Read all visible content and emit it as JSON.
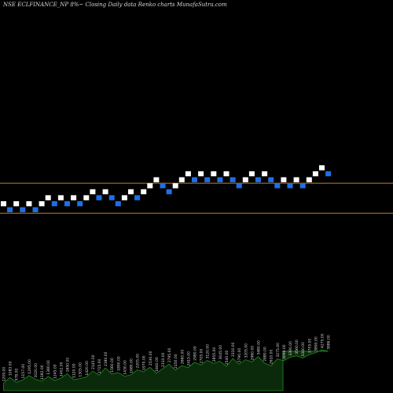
{
  "chart_data": {
    "type": "renko",
    "title": "NSE ECLFINANCE_NP 8%~   Closing Daily data  Renko  charts MunafaSutra.com",
    "colors": {
      "background": "#000000",
      "up_brick": "#ffffff",
      "down_brick": "#1e6fe8",
      "reference_line": "#c77d2e",
      "volume_fill": "#0b2a0b",
      "volume_line": "#1e8c1e",
      "volume_label": "#dcdcdc"
    },
    "price_range": [
      12,
      76
    ],
    "reference_lines": [
      47,
      42
    ],
    "bricks": [
      {
        "dir": "up",
        "level": 43
      },
      {
        "dir": "down",
        "level": 42
      },
      {
        "dir": "up",
        "level": 43
      },
      {
        "dir": "down",
        "level": 42
      },
      {
        "dir": "up",
        "level": 43
      },
      {
        "dir": "down",
        "level": 42
      },
      {
        "dir": "up",
        "level": 43
      },
      {
        "dir": "up",
        "level": 44
      },
      {
        "dir": "down",
        "level": 43
      },
      {
        "dir": "up",
        "level": 44
      },
      {
        "dir": "down",
        "level": 43
      },
      {
        "dir": "up",
        "level": 44
      },
      {
        "dir": "down",
        "level": 43
      },
      {
        "dir": "up",
        "level": 44
      },
      {
        "dir": "up",
        "level": 45
      },
      {
        "dir": "down",
        "level": 44
      },
      {
        "dir": "up",
        "level": 45
      },
      {
        "dir": "down",
        "level": 44
      },
      {
        "dir": "down",
        "level": 43
      },
      {
        "dir": "up",
        "level": 44
      },
      {
        "dir": "up",
        "level": 45
      },
      {
        "dir": "down",
        "level": 44
      },
      {
        "dir": "up",
        "level": 45
      },
      {
        "dir": "up",
        "level": 46
      },
      {
        "dir": "up",
        "level": 47
      },
      {
        "dir": "down",
        "level": 46
      },
      {
        "dir": "down",
        "level": 45
      },
      {
        "dir": "up",
        "level": 46
      },
      {
        "dir": "up",
        "level": 47
      },
      {
        "dir": "up",
        "level": 48
      },
      {
        "dir": "down",
        "level": 47
      },
      {
        "dir": "up",
        "level": 48
      },
      {
        "dir": "down",
        "level": 47
      },
      {
        "dir": "up",
        "level": 48
      },
      {
        "dir": "down",
        "level": 47
      },
      {
        "dir": "up",
        "level": 48
      },
      {
        "dir": "down",
        "level": 47
      },
      {
        "dir": "down",
        "level": 46
      },
      {
        "dir": "up",
        "level": 47
      },
      {
        "dir": "up",
        "level": 48
      },
      {
        "dir": "down",
        "level": 47
      },
      {
        "dir": "up",
        "level": 48
      },
      {
        "dir": "down",
        "level": 47
      },
      {
        "dir": "down",
        "level": 46
      },
      {
        "dir": "up",
        "level": 47
      },
      {
        "dir": "down",
        "level": 46
      },
      {
        "dir": "up",
        "level": 47
      },
      {
        "dir": "down",
        "level": 46
      },
      {
        "dir": "up",
        "level": 47
      },
      {
        "dir": "up",
        "level": 48
      },
      {
        "dir": "up",
        "level": 49
      },
      {
        "dir": "down",
        "level": 48
      }
    ],
    "volume": {
      "values": [
        20,
        35,
        22,
        28,
        40,
        30,
        25,
        38,
        27,
        33,
        45,
        29,
        32,
        36,
        52,
        41,
        60,
        44,
        48,
        38,
        42,
        55,
        50,
        62,
        46,
        58,
        70,
        54,
        66,
        61,
        75,
        68,
        80,
        72,
        78,
        64,
        85,
        70,
        82,
        76,
        90,
        73,
        66,
        84,
        79,
        88,
        92,
        86,
        95,
        100,
        108,
        104
      ],
      "labels": [
        "1209.00",
        "1083.00",
        "978.00",
        "1157.00",
        "1295.00",
        "1020.00",
        "1182.00",
        "1380.00",
        "1245.00",
        "1402.00",
        "1650.00",
        "1120.00",
        "1305.00",
        "1420.00",
        "2145.00",
        "1715.00",
        "2380.00",
        "1560.00",
        "1890.00",
        "1430.00",
        "1680.00",
        "2205.00",
        "1970.00",
        "2530.00",
        "1840.00",
        "2310.00",
        "2795.00",
        "2150.00",
        "2660.00",
        "2415.00",
        "2980.00",
        "2705.00",
        "3120.00",
        "2855.00",
        "3045.00",
        "2540.00",
        "3310.00",
        "2790.00",
        "3205.00",
        "2960.00",
        "3480.00",
        "2880.00",
        "2610.00",
        "3275.00",
        "3090.00",
        "3390.00",
        "3560.00",
        "3340.00",
        "3705.00",
        "3890.00",
        "4275.00",
        "3986.00"
      ]
    }
  }
}
